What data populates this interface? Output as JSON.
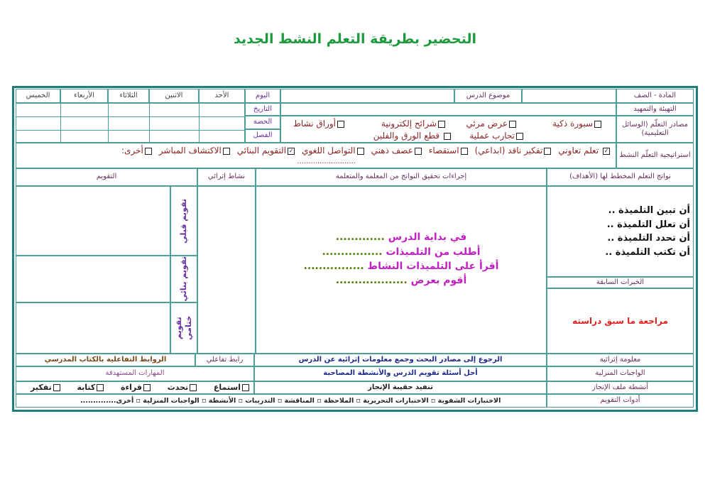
{
  "title": "التحضير بطريقة التعلم النشط الجديد",
  "colors": {
    "title": "#1c9a3c",
    "border": "#1f7f7a",
    "procedures": "#c21fc2",
    "prior": "#e02020",
    "content": "#1e2a8a"
  },
  "header": {
    "subject_grade": "المادة - الصف",
    "lesson_topic": "موضوع الدرس",
    "warmup": "التهيئة والتمهيد",
    "resources_label": "مصادر التعلّم (الوسائل التعليمية)",
    "strategy_label": "استراتيجية التعلّم النشط"
  },
  "days": {
    "row_labels": [
      "اليوم",
      "التاريخ",
      "الحصة",
      "الفصل"
    ],
    "columns": [
      "الأحد",
      "الاثنين",
      "الثلاثاء",
      "الأربعاء",
      "الخميس"
    ]
  },
  "resources": [
    {
      "label": "سبورة ذكية",
      "checked": false
    },
    {
      "label": "عرض مرئي",
      "checked": false
    },
    {
      "label": "شرائح إلكترونية",
      "checked": false
    },
    {
      "label": "أوراق نشاط",
      "checked": false
    },
    {
      "label": "تجارب عملية",
      "checked": false
    },
    {
      "label": "قطع الورق والفلين",
      "checked": false
    }
  ],
  "strategies": [
    {
      "label": "تعلم تعاوني",
      "checked": true
    },
    {
      "label": "تفكير ناقد (ابداعي)",
      "checked": false
    },
    {
      "label": "استقصاء",
      "checked": false
    },
    {
      "label": "عصف ذهني",
      "checked": false
    },
    {
      "label": "التواصل اللغوي",
      "checked": false
    },
    {
      "label": "التقويم البنائي",
      "checked": true
    },
    {
      "label": "الاكتشاف المباشر",
      "checked": false
    },
    {
      "label": "أخرى:",
      "checked": false
    }
  ],
  "strategy_dots": "..........................",
  "sections": {
    "objectives": "نواتج التعلم المخطط لها (الأهداف)",
    "procedures": "إجراءات تحقيق النواتج من المعلمة والمتعلمة",
    "enrichment": "نشاط إثرائي",
    "evaluation": "التقويم",
    "prior": "الخبرات السابقة"
  },
  "objectives": [
    "أن تبين التلميذة ..",
    "أن تعلل التلميذة ..",
    "أن تحدد التلميذة ..",
    "أن تكتب التلميذة .."
  ],
  "procedures": [
    {
      "text": "في بداية الدرس",
      "dots": "............."
    },
    {
      "text": "أطلب من التلميذات",
      "dots": "................"
    },
    {
      "text": "أقرأ على التلميذات النشاط",
      "dots": "................"
    },
    {
      "text": "أقوم بعرض",
      "dots": "..................."
    }
  ],
  "evaluations": [
    "تقويم قبلي",
    "تقويم بنائي",
    "تقويم ختامي"
  ],
  "prior_text": "مراجعة ما سبق دراسته",
  "bottom": {
    "enrich_info_label": "معلومة إثرائية",
    "enrich_info": "الرجوع إلى مصادر البحث وجمع معلومات إثرائية عن الدرس",
    "interactive_link": "رابط تفاعلي",
    "interactive_links": "الروابط التفاعلية بالكتاب المدرسي",
    "homework_label": "الواجبات المنزلية",
    "homework": "أحل أسئلة تقويم الدرس والأنشطة المصاحبة",
    "target_skills": "المهارات المستهدفة",
    "portfolio_label": "أنشطة ملف الإنجاز",
    "portfolio": "تنفيذ حقيبة الإنجاز",
    "skills": [
      "استماع",
      "تحدث",
      "قراءة",
      "كتابة",
      "تفكير"
    ],
    "tools_label": "أدوات التقويم",
    "tools": "الاختبارات الشفوية ▫ الاختبارات التحريرية ▫ الملاحظة ▫ المناقشة ▫ التدريبات ▫ الأنشطة ▫ الواجبات المنزلية ▫ أخرى.............."
  }
}
